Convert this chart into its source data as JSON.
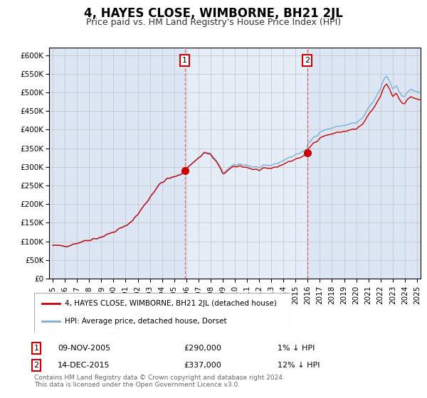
{
  "title": "4, HAYES CLOSE, WIMBORNE, BH21 2JL",
  "subtitle": "Price paid vs. HM Land Registry's House Price Index (HPI)",
  "legend_label_red": "4, HAYES CLOSE, WIMBORNE, BH21 2JL (detached house)",
  "legend_label_blue": "HPI: Average price, detached house, Dorset",
  "footnote": "Contains HM Land Registry data © Crown copyright and database right 2024.\nThis data is licensed under the Open Government Licence v3.0.",
  "sale1": {
    "label": "1",
    "date": "09-NOV-2005",
    "price": 290000,
    "price_str": "£290,000",
    "rel": "1% ↓ HPI",
    "x": 2005.87
  },
  "sale2": {
    "label": "2",
    "date": "14-DEC-2015",
    "price": 337000,
    "price_str": "£337,000",
    "rel": "12% ↓ HPI",
    "x": 2015.96
  },
  "ylim": [
    0,
    620000
  ],
  "yticks": [
    0,
    50000,
    100000,
    150000,
    200000,
    250000,
    300000,
    350000,
    400000,
    450000,
    500000,
    550000,
    600000
  ],
  "xlim": [
    1994.7,
    2025.3
  ],
  "background_color": "#ffffff",
  "plot_bg": "#dce6f5",
  "shade_bg": "#e8f0fa",
  "line_color_red": "#cc0000",
  "line_color_blue": "#7bafd4",
  "vline_color": "#dd4444",
  "grid_color": "#c8c8c8",
  "title_fontsize": 12,
  "subtitle_fontsize": 9,
  "tick_fontsize": 7.5
}
